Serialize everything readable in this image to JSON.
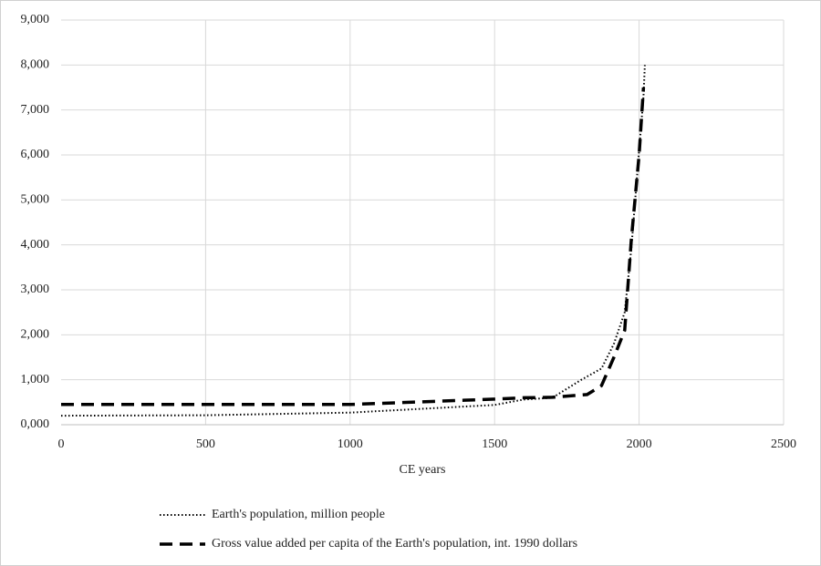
{
  "chart_data": {
    "type": "line",
    "x_label": "CE years",
    "xlim": [
      0,
      2500
    ],
    "xticks": [
      0,
      500,
      1000,
      1500,
      2000,
      2500
    ],
    "ylim": [
      0,
      9000
    ],
    "yticks": [
      {
        "value": 0,
        "label": "0,000"
      },
      {
        "value": 1000,
        "label": "1,000"
      },
      {
        "value": 2000,
        "label": "2,000"
      },
      {
        "value": 3000,
        "label": "3,000"
      },
      {
        "value": 4000,
        "label": "4,000"
      },
      {
        "value": 5000,
        "label": "5,000"
      },
      {
        "value": 6000,
        "label": "6,000"
      },
      {
        "value": 7000,
        "label": "7,000"
      },
      {
        "value": 8000,
        "label": "8,000"
      },
      {
        "value": 9000,
        "label": "9,000"
      }
    ],
    "grid": true,
    "series": [
      {
        "name": "Earth's population, million people",
        "color": "#000000",
        "dash": "dotted",
        "x": [
          0,
          500,
          1000,
          1500,
          1600,
          1700,
          1800,
          1870,
          1913,
          1950,
          1973,
          2000,
          2015,
          2020
        ],
        "values": [
          200,
          210,
          270,
          440,
          560,
          600,
          1000,
          1250,
          1800,
          2500,
          3900,
          6100,
          7300,
          8000
        ]
      },
      {
        "name": "Gross value added per capita of the Earth's population, int. 1990 dollars",
        "color": "#000000",
        "dash": "dashed",
        "x": [
          0,
          1000,
          1500,
          1600,
          1700,
          1820,
          1870,
          1913,
          1950,
          1973,
          2000,
          2015
        ],
        "values": [
          450,
          450,
          570,
          600,
          610,
          670,
          870,
          1500,
          2100,
          4100,
          6000,
          7500
        ]
      }
    ]
  }
}
